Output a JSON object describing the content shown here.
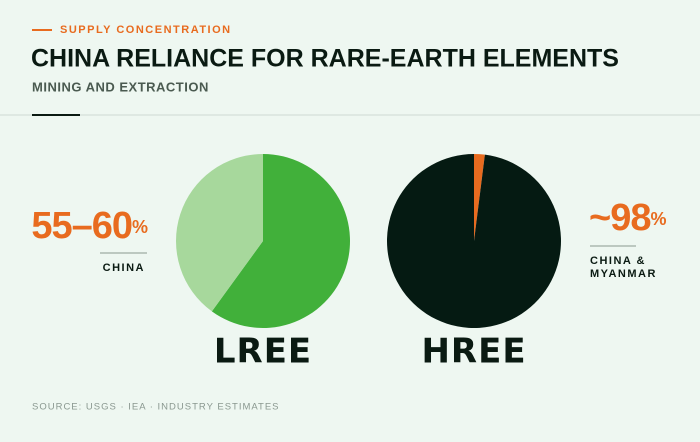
{
  "header": {
    "eyebrow": "SUPPLY CONCENTRATION",
    "title": "CHINA RELIANCE FOR RARE-EARTH ELEMENTS",
    "subtitle": "MINING AND EXTRACTION"
  },
  "chart_data": [
    {
      "type": "pie",
      "label": "LREE",
      "values": [
        60,
        40
      ],
      "colors": [
        "#41b03a",
        "#a7d89c"
      ]
    },
    {
      "type": "pie",
      "label": "HREE",
      "values": [
        2,
        98
      ],
      "colors": [
        "#e86b1f",
        "#051a12"
      ]
    }
  ],
  "stats": [
    {
      "value": "55–60",
      "unit": "%",
      "label": [
        "CHINA"
      ]
    },
    {
      "value": "~98",
      "unit": "%",
      "label": [
        "CHINA &",
        "MYANMAR"
      ]
    }
  ],
  "footer": {
    "source": "SOURCE: USGS · IEA · INDUSTRY ESTIMATES"
  }
}
